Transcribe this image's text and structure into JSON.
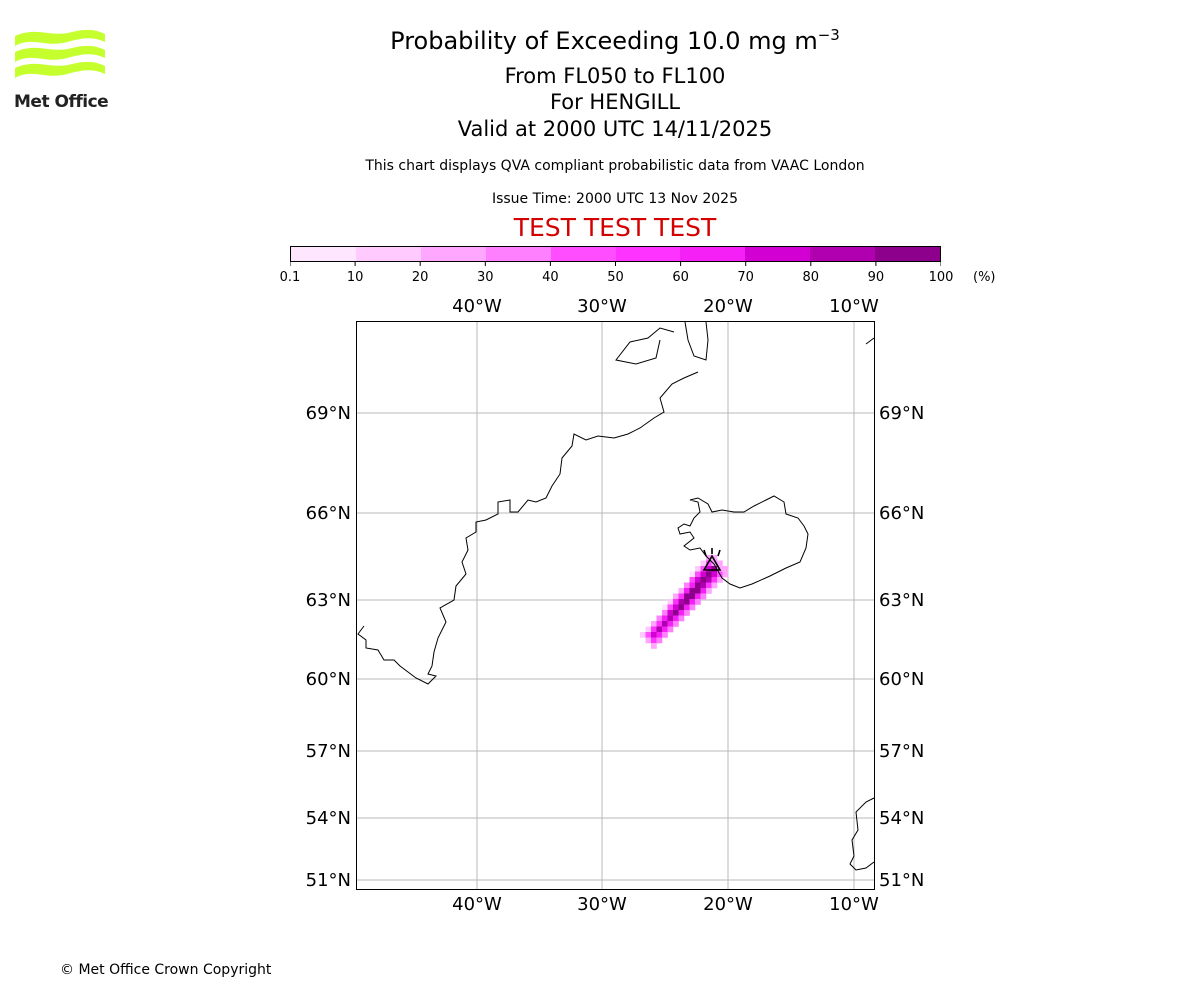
{
  "logo": {
    "text": "Met Office",
    "color": "#c5ff2e"
  },
  "header": {
    "title": "Probability of Exceeding 10.0 mg m",
    "title_exponent": "−3",
    "line1": "From FL050 to FL100",
    "line2": "For HENGILL",
    "line3": "Valid at 2000 UTC 14/11/2025",
    "note": "This chart displays QVA compliant probabilistic data from VAAC London",
    "issue_time": "Issue Time: 2000 UTC 13 Nov 2025",
    "test_banner": "TEST TEST TEST"
  },
  "colorbar": {
    "ticks": [
      "0.1",
      "10",
      "20",
      "30",
      "40",
      "50",
      "60",
      "70",
      "80",
      "90",
      "100"
    ],
    "unit": "(%)",
    "colors": [
      "#ffe6ff",
      "#ffcbff",
      "#ffa6ff",
      "#ff80ff",
      "#ff4dff",
      "#ff33ff",
      "#f520f5",
      "#d200d2",
      "#b000b0",
      "#8c008c",
      "#640064"
    ]
  },
  "map": {
    "lon_labels": [
      "40°W",
      "30°W",
      "20°W",
      "10°W"
    ],
    "lat_labels": [
      "69°N",
      "66°N",
      "63°N",
      "60°N",
      "57°N",
      "54°N",
      "51°N"
    ],
    "volcano": "HENGILL"
  },
  "footer": {
    "copyright": "© Met Office Crown Copyright"
  }
}
